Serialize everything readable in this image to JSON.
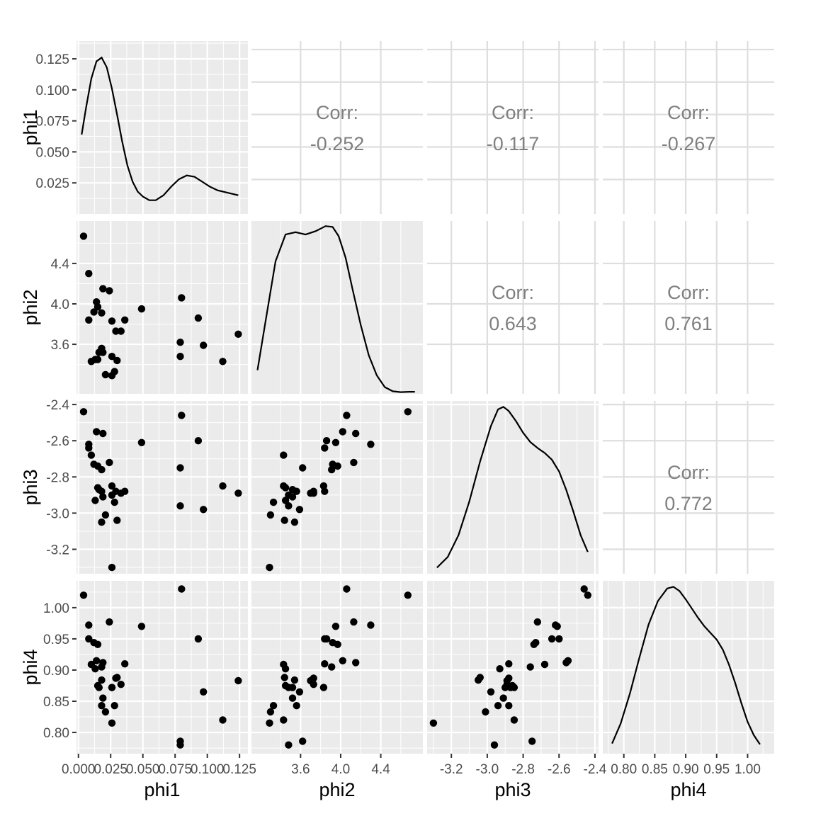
{
  "chart_data": {
    "type": "scatter-matrix",
    "variables": [
      "phi1",
      "phi2",
      "phi3",
      "phi4"
    ],
    "axis_labels": {
      "phi1": "phi1",
      "phi2": "phi2",
      "phi3": "phi3",
      "phi4": "phi4"
    },
    "corr_label": "Corr:",
    "correlations": [
      {
        "row": 0,
        "col": 1,
        "value": "-0.252"
      },
      {
        "row": 0,
        "col": 2,
        "value": "-0.117"
      },
      {
        "row": 0,
        "col": 3,
        "value": "-0.267"
      },
      {
        "row": 1,
        "col": 2,
        "value": "0.643"
      },
      {
        "row": 1,
        "col": 3,
        "value": "0.761"
      },
      {
        "row": 2,
        "col": 3,
        "value": "0.772"
      }
    ],
    "x_ticks": {
      "phi1": [
        {
          "v": 0.0,
          "l": "0.000"
        },
        {
          "v": 0.025,
          "l": "0.025"
        },
        {
          "v": 0.05,
          "l": "0.050"
        },
        {
          "v": 0.075,
          "l": "0.075"
        },
        {
          "v": 0.1,
          "l": "0.100"
        },
        {
          "v": 0.125,
          "l": "0.125"
        }
      ],
      "phi2": [
        {
          "v": 3.6,
          "l": "3.6"
        },
        {
          "v": 4.0,
          "l": "4.0"
        },
        {
          "v": 4.4,
          "l": "4.4"
        }
      ],
      "phi3": [
        {
          "v": -3.2,
          "l": "-3.2"
        },
        {
          "v": -3.0,
          "l": "-3.0"
        },
        {
          "v": -2.8,
          "l": "-2.8"
        },
        {
          "v": -2.6,
          "l": "-2.6"
        },
        {
          "v": -2.4,
          "l": "-2.4"
        }
      ],
      "phi4": [
        {
          "v": 0.8,
          "l": "0.80"
        },
        {
          "v": 0.85,
          "l": "0.85"
        },
        {
          "v": 0.9,
          "l": "0.90"
        },
        {
          "v": 0.95,
          "l": "0.95"
        },
        {
          "v": 1.0,
          "l": "1.00"
        }
      ]
    },
    "y_ticks": {
      "phi1": [
        {
          "v": 0.025,
          "l": "0.025"
        },
        {
          "v": 0.05,
          "l": "0.050"
        },
        {
          "v": 0.075,
          "l": "0.075"
        },
        {
          "v": 0.1,
          "l": "0.100"
        },
        {
          "v": 0.125,
          "l": "0.125"
        }
      ],
      "phi2": [
        {
          "v": 3.6,
          "l": "3.6"
        },
        {
          "v": 4.0,
          "l": "4.0"
        },
        {
          "v": 4.4,
          "l": "4.4"
        }
      ],
      "phi3": [
        {
          "v": -3.2,
          "l": "-3.2"
        },
        {
          "v": -3.0,
          "l": "-3.0"
        },
        {
          "v": -2.8,
          "l": "-2.8"
        },
        {
          "v": -2.6,
          "l": "-2.6"
        },
        {
          "v": -2.4,
          "l": "-2.4"
        }
      ],
      "phi4": [
        {
          "v": 0.8,
          "l": "0.80"
        },
        {
          "v": 0.85,
          "l": "0.85"
        },
        {
          "v": 0.9,
          "l": "0.90"
        },
        {
          "v": 0.95,
          "l": "0.95"
        },
        {
          "v": 1.0,
          "l": "1.00"
        }
      ]
    },
    "ranges": {
      "phi1": [
        -0.0015,
        0.1315
      ],
      "phi2": [
        3.11,
        4.82
      ],
      "phi3": [
        -3.335,
        -2.38
      ],
      "phi4": [
        0.766,
        1.043
      ]
    },
    "density_ylim": {
      "phi1": [
        0.0,
        0.1393
      ],
      "phi2": [
        3.11,
        4.82
      ],
      "phi3": [
        -3.335,
        -2.38
      ],
      "phi4": [
        0.766,
        1.043
      ]
    },
    "density_curves": {
      "phi1": [
        [
          0.0025,
          0.064
        ],
        [
          0.006,
          0.086
        ],
        [
          0.01,
          0.109
        ],
        [
          0.014,
          0.123
        ],
        [
          0.018,
          0.126
        ],
        [
          0.022,
          0.118
        ],
        [
          0.026,
          0.101
        ],
        [
          0.03,
          0.08
        ],
        [
          0.034,
          0.058
        ],
        [
          0.038,
          0.039
        ],
        [
          0.042,
          0.026
        ],
        [
          0.046,
          0.018
        ],
        [
          0.05,
          0.014
        ],
        [
          0.055,
          0.011
        ],
        [
          0.06,
          0.011
        ],
        [
          0.066,
          0.015
        ],
        [
          0.072,
          0.022
        ],
        [
          0.078,
          0.028
        ],
        [
          0.084,
          0.031
        ],
        [
          0.09,
          0.03
        ],
        [
          0.096,
          0.026
        ],
        [
          0.102,
          0.022
        ],
        [
          0.108,
          0.019
        ],
        [
          0.116,
          0.017
        ],
        [
          0.124,
          0.015
        ]
      ],
      "phi2": [
        [
          3.17,
          0.131
        ],
        [
          3.25,
          0.42
        ],
        [
          3.35,
          0.78
        ],
        [
          3.45,
          0.94
        ],
        [
          3.55,
          0.954
        ],
        [
          3.65,
          0.94
        ],
        [
          3.75,
          0.96
        ],
        [
          3.85,
          0.99
        ],
        [
          3.92,
          0.985
        ],
        [
          3.98,
          0.93
        ],
        [
          4.05,
          0.8
        ],
        [
          4.12,
          0.61
        ],
        [
          4.2,
          0.4
        ],
        [
          4.28,
          0.22
        ],
        [
          4.36,
          0.1
        ],
        [
          4.44,
          0.03
        ],
        [
          4.52,
          0.005
        ],
        [
          4.6,
          0.0
        ],
        [
          4.68,
          0.002
        ],
        [
          4.74,
          0.002
        ]
      ],
      "phi3": [
        [
          -3.28,
          0.026
        ],
        [
          -3.22,
          0.09
        ],
        [
          -3.16,
          0.22
        ],
        [
          -3.1,
          0.42
        ],
        [
          -3.04,
          0.66
        ],
        [
          -2.98,
          0.87
        ],
        [
          -2.94,
          0.97
        ],
        [
          -2.91,
          0.985
        ],
        [
          -2.88,
          0.96
        ],
        [
          -2.84,
          0.9
        ],
        [
          -2.8,
          0.83
        ],
        [
          -2.76,
          0.775
        ],
        [
          -2.72,
          0.74
        ],
        [
          -2.68,
          0.71
        ],
        [
          -2.64,
          0.67
        ],
        [
          -2.6,
          0.6
        ],
        [
          -2.56,
          0.49
        ],
        [
          -2.52,
          0.36
        ],
        [
          -2.48,
          0.22
        ],
        [
          -2.44,
          0.12
        ]
      ],
      "phi4": [
        [
          0.781,
          0.05
        ],
        [
          0.795,
          0.17
        ],
        [
          0.81,
          0.35
        ],
        [
          0.825,
          0.56
        ],
        [
          0.84,
          0.76
        ],
        [
          0.855,
          0.9
        ],
        [
          0.87,
          0.975
        ],
        [
          0.88,
          0.985
        ],
        [
          0.89,
          0.96
        ],
        [
          0.9,
          0.91
        ],
        [
          0.91,
          0.855
        ],
        [
          0.92,
          0.8
        ],
        [
          0.93,
          0.75
        ],
        [
          0.94,
          0.71
        ],
        [
          0.95,
          0.67
        ],
        [
          0.96,
          0.61
        ],
        [
          0.97,
          0.52
        ],
        [
          0.98,
          0.41
        ],
        [
          0.99,
          0.29
        ],
        [
          1.0,
          0.18
        ],
        [
          1.01,
          0.1
        ],
        [
          1.02,
          0.045
        ]
      ]
    },
    "points": [
      [
        0.004,
        4.67,
        -2.44,
        1.02
      ],
      [
        0.008,
        4.3,
        -2.62,
        0.972
      ],
      [
        0.019,
        4.15,
        -2.56,
        0.912
      ],
      [
        0.024,
        4.13,
        -2.72,
        0.977
      ],
      [
        0.014,
        4.02,
        -2.55,
        0.915
      ],
      [
        0.012,
        3.92,
        -2.73,
        0.944
      ],
      [
        0.015,
        3.97,
        -2.74,
        0.941
      ],
      [
        0.018,
        3.91,
        -2.76,
        0.905
      ],
      [
        0.049,
        3.95,
        -2.61,
        0.97
      ],
      [
        0.008,
        3.84,
        -2.64,
        0.95
      ],
      [
        0.026,
        3.83,
        -2.85,
        0.872
      ],
      [
        0.036,
        3.84,
        -2.88,
        0.91
      ],
      [
        0.033,
        3.73,
        -2.89,
        0.877
      ],
      [
        0.029,
        3.73,
        -2.88,
        0.887
      ],
      [
        0.018,
        3.56,
        -2.88,
        0.843
      ],
      [
        0.019,
        3.52,
        -2.91,
        0.855
      ],
      [
        0.016,
        3.52,
        -2.87,
        0.872
      ],
      [
        0.026,
        3.48,
        -2.9,
        0.872
      ],
      [
        0.013,
        3.45,
        -2.93,
        0.902
      ],
      [
        0.015,
        3.45,
        -2.86,
        0.875
      ],
      [
        0.01,
        3.43,
        -2.68,
        0.909
      ],
      [
        0.028,
        3.33,
        -2.94,
        0.843
      ],
      [
        0.021,
        3.3,
        -3.01,
        0.833
      ],
      [
        0.026,
        3.29,
        -3.3,
        0.815
      ],
      [
        0.018,
        3.54,
        -3.05,
        0.884
      ],
      [
        0.03,
        3.44,
        -3.04,
        0.888
      ],
      [
        0.08,
        4.06,
        -2.46,
        1.03
      ],
      [
        0.093,
        3.86,
        -2.6,
        0.95
      ],
      [
        0.079,
        3.62,
        -2.75,
        0.786
      ],
      [
        0.079,
        3.48,
        -2.96,
        0.78
      ],
      [
        0.097,
        3.59,
        -2.98,
        0.865
      ],
      [
        0.124,
        3.7,
        -2.89,
        0.883
      ],
      [
        0.112,
        3.43,
        -2.85,
        0.82
      ]
    ]
  }
}
